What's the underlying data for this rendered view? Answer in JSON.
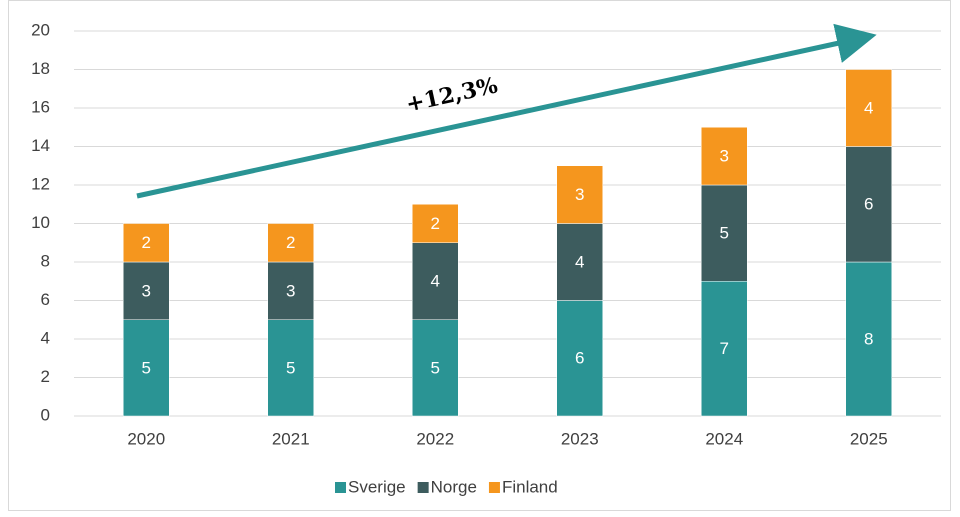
{
  "chart_data": {
    "type": "stacked_bar",
    "annotation": "+12,3%",
    "categories": [
      "2020",
      "2021",
      "2022",
      "2023",
      "2024",
      "2025"
    ],
    "series": [
      {
        "name": "Sverige",
        "color": "#2a9494",
        "values": [
          5,
          5,
          5,
          6,
          7,
          8
        ]
      },
      {
        "name": "Norge",
        "color": "#3d5c5e",
        "values": [
          3,
          3,
          4,
          4,
          5,
          6
        ]
      },
      {
        "name": "Finland",
        "color": "#f5961e",
        "values": [
          2,
          2,
          2,
          3,
          3,
          4
        ]
      }
    ],
    "ylim": [
      0,
      20
    ],
    "yticks": [
      0,
      2,
      4,
      6,
      8,
      10,
      12,
      14,
      16,
      18,
      20
    ],
    "grid": true,
    "legend": "bottom"
  }
}
